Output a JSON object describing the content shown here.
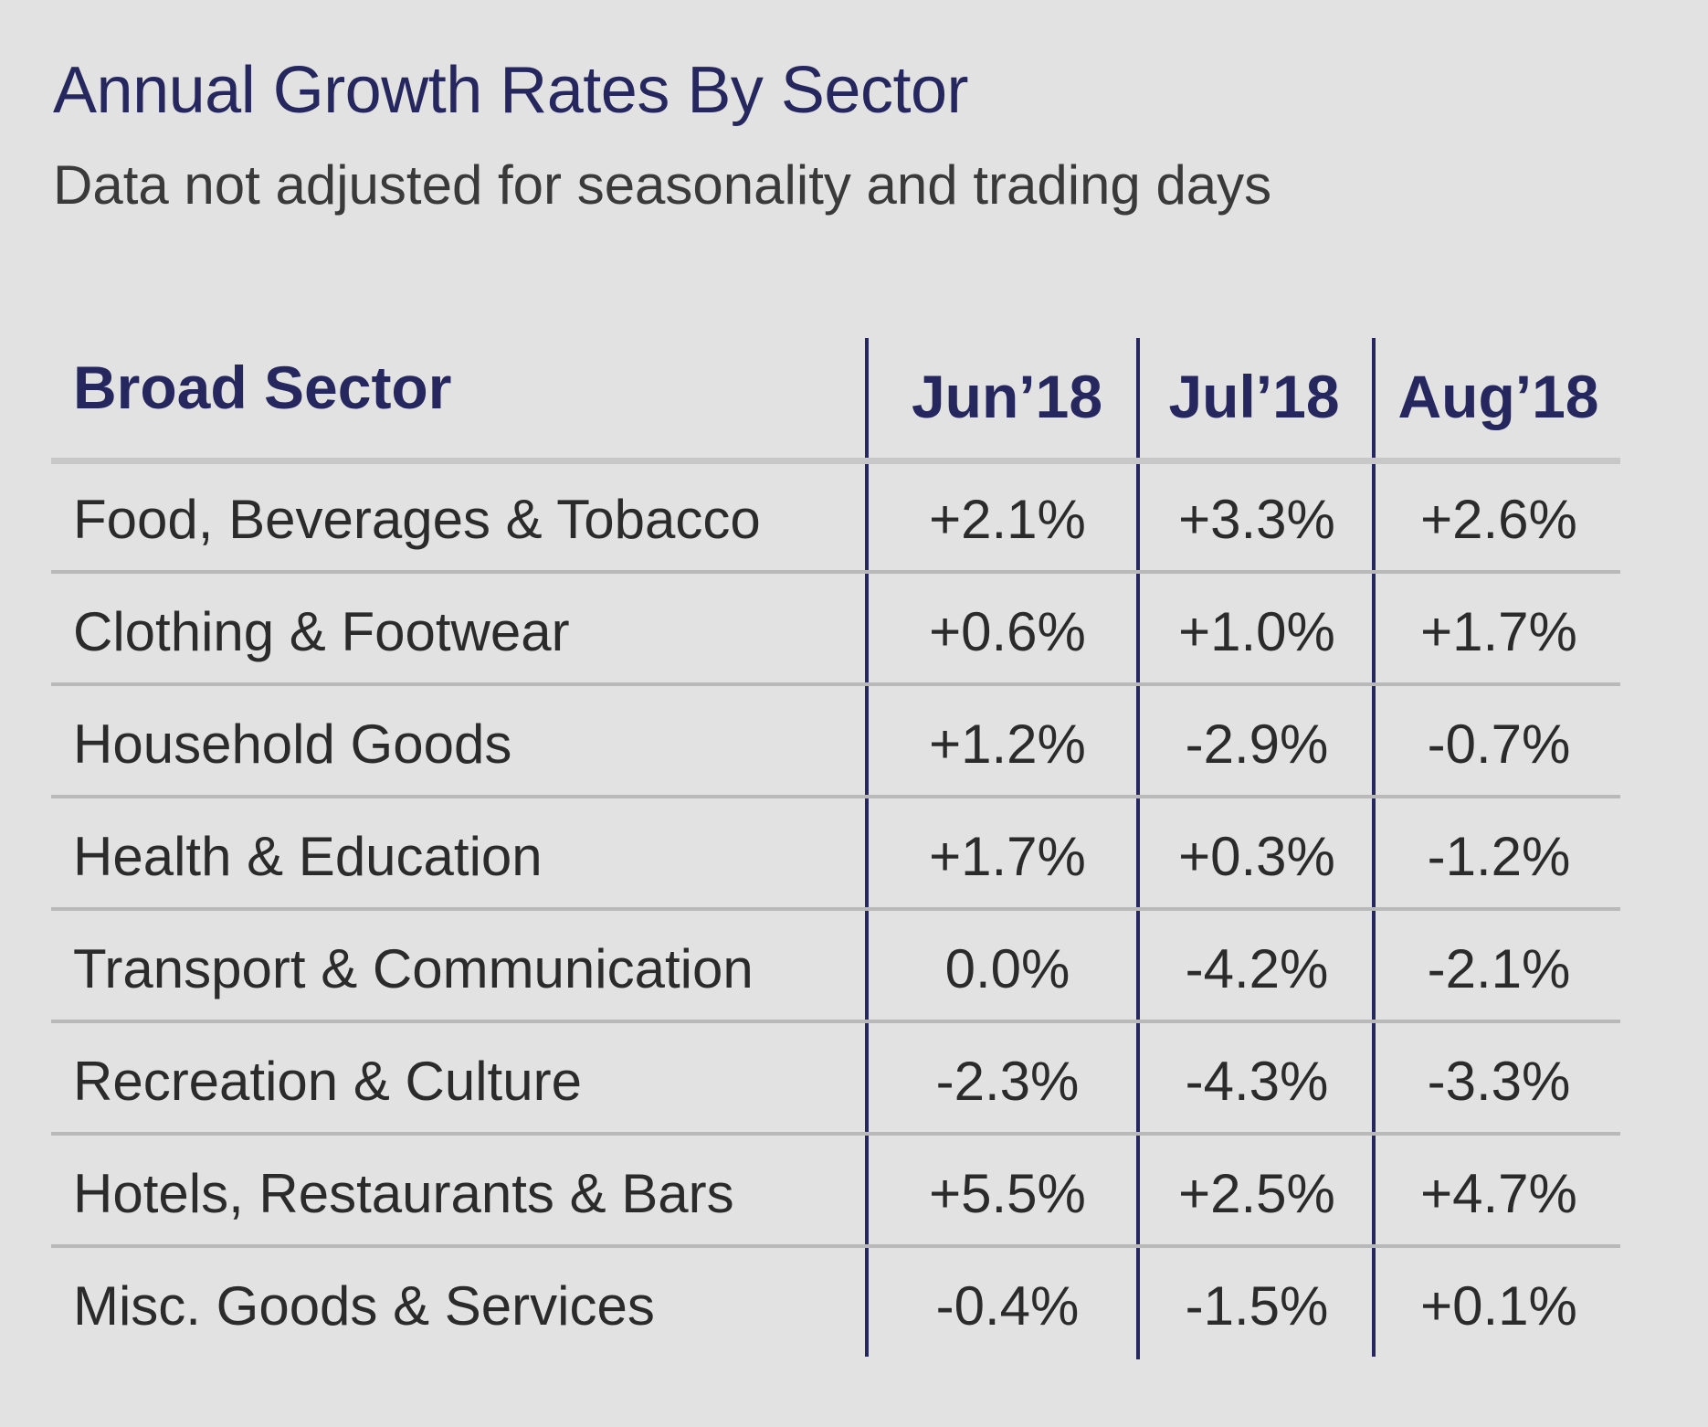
{
  "chart_data": {
    "type": "table",
    "title": "Annual Growth Rates By Sector",
    "subtitle": "Data not adjusted for seasonality and trading days",
    "header": {
      "sector": "Broad Sector",
      "columns": [
        "Jun’18",
        "Jul’18",
        "Aug’18"
      ]
    },
    "rows": [
      {
        "sector": "Food, Beverages & Tobacco",
        "values": [
          "+2.1%",
          "+3.3%",
          "+2.6%"
        ]
      },
      {
        "sector": "Clothing & Footwear",
        "values": [
          "+0.6%",
          "+1.0%",
          "+1.7%"
        ]
      },
      {
        "sector": "Household Goods",
        "values": [
          "+1.2%",
          "-2.9%",
          "-0.7%"
        ]
      },
      {
        "sector": "Health & Education",
        "values": [
          "+1.7%",
          "+0.3%",
          "-1.2%"
        ]
      },
      {
        "sector": "Transport & Communication",
        "values": [
          "0.0%",
          "-4.2%",
          "-2.1%"
        ]
      },
      {
        "sector": "Recreation & Culture",
        "values": [
          "-2.3%",
          "-4.3%",
          "-3.3%"
        ]
      },
      {
        "sector": "Hotels, Restaurants & Bars",
        "values": [
          "+5.5%",
          "+2.5%",
          "+4.7%"
        ]
      },
      {
        "sector": "Misc. Goods & Services",
        "values": [
          "-0.4%",
          "-1.5%",
          "+0.1%"
        ]
      }
    ]
  },
  "colors": {
    "background": "#e2e2e2",
    "heading": "#25275e",
    "text": "#2b2b2b",
    "divider": "#25275e",
    "row_rule": "#b9b9b9"
  }
}
